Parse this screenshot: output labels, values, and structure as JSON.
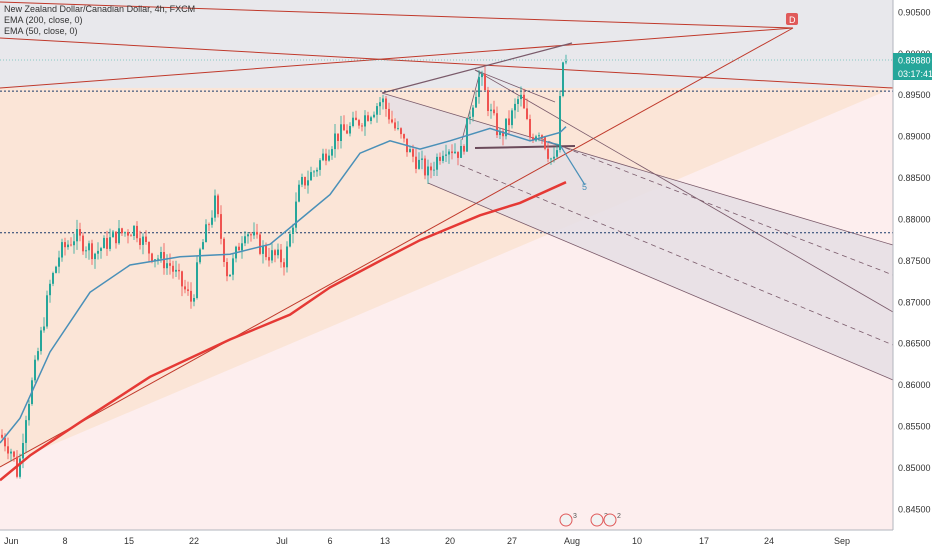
{
  "legend": {
    "title": "New Zealand Dollar/Canadian Dollar, 4h, FXCM",
    "ema200": "EMA (200, close, 0)",
    "ema50": "EMA (50, close, 0)"
  },
  "chart_data": {
    "type": "candlestick",
    "symbol": "NZDCAD",
    "timeframe": "4h",
    "ylim": [
      0.8425,
      0.9065
    ],
    "y_ticks": [
      "0.90500",
      "0.90000",
      "0.89500",
      "0.89000",
      "0.88500",
      "0.88000",
      "0.87500",
      "0.87000",
      "0.86500",
      "0.86000",
      "0.85500",
      "0.85000",
      "0.84500"
    ],
    "x_ticks": [
      "Jun",
      "8",
      "15",
      "22",
      "Jul",
      "6",
      "13",
      "20",
      "27",
      "Aug",
      "10",
      "17",
      "24",
      "Sep"
    ],
    "last_price": "0.89880",
    "countdown": "03:17:41",
    "point_label": "D",
    "extension_label": "5",
    "event_counts": [
      "3",
      "3",
      "2"
    ],
    "dotted_levels": [
      0.8955,
      0.8784
    ],
    "ema200_points": [
      [
        0,
        0.8485
      ],
      [
        30,
        0.8515
      ],
      [
        80,
        0.8555
      ],
      [
        150,
        0.861
      ],
      [
        230,
        0.8655
      ],
      [
        290,
        0.8685
      ],
      [
        330,
        0.8718
      ],
      [
        380,
        0.875
      ],
      [
        420,
        0.8775
      ],
      [
        480,
        0.8805
      ],
      [
        520,
        0.882
      ],
      [
        566,
        0.8845
      ]
    ],
    "ema50_points": [
      [
        0,
        0.853
      ],
      [
        20,
        0.856
      ],
      [
        50,
        0.864
      ],
      [
        90,
        0.8712
      ],
      [
        130,
        0.8745
      ],
      [
        180,
        0.8755
      ],
      [
        230,
        0.8758
      ],
      [
        270,
        0.877
      ],
      [
        300,
        0.88
      ],
      [
        330,
        0.883
      ],
      [
        360,
        0.888
      ],
      [
        390,
        0.8895
      ],
      [
        420,
        0.8885
      ],
      [
        450,
        0.8895
      ],
      [
        490,
        0.891
      ],
      [
        530,
        0.8895
      ],
      [
        560,
        0.8905
      ],
      [
        566,
        0.8912
      ]
    ],
    "colors": {
      "up": "#26a69a",
      "down": "#ef5350",
      "ema200": "#e53935",
      "ema50": "#4a90b8",
      "last_price_bg": "#26a69a",
      "countdown_bg": "#26a69a"
    }
  }
}
